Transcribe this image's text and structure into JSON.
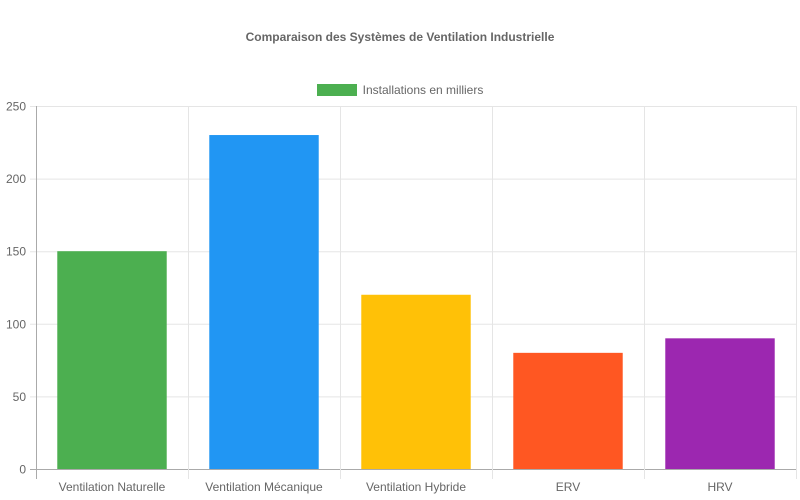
{
  "chart_data": {
    "type": "bar",
    "title": "Comparaison des Systèmes de Ventilation Industrielle",
    "categories": [
      "Ventilation Naturelle",
      "Ventilation Mécanique",
      "Ventilation Hybride",
      "ERV",
      "HRV"
    ],
    "series": [
      {
        "name": "Installations en milliers",
        "values": [
          150,
          230,
          120,
          80,
          90
        ],
        "colors": [
          "#4CAF50",
          "#2196F3",
          "#FFC107",
          "#FF5722",
          "#9C27B0"
        ]
      }
    ],
    "xlabel": "",
    "ylabel": "",
    "ylim": [
      0,
      250
    ],
    "yticks": [
      0,
      50,
      100,
      150,
      200,
      250
    ],
    "grid": true,
    "legend_position": "top"
  },
  "legend": {
    "label": "Installations en milliers",
    "color": "#4CAF50"
  }
}
